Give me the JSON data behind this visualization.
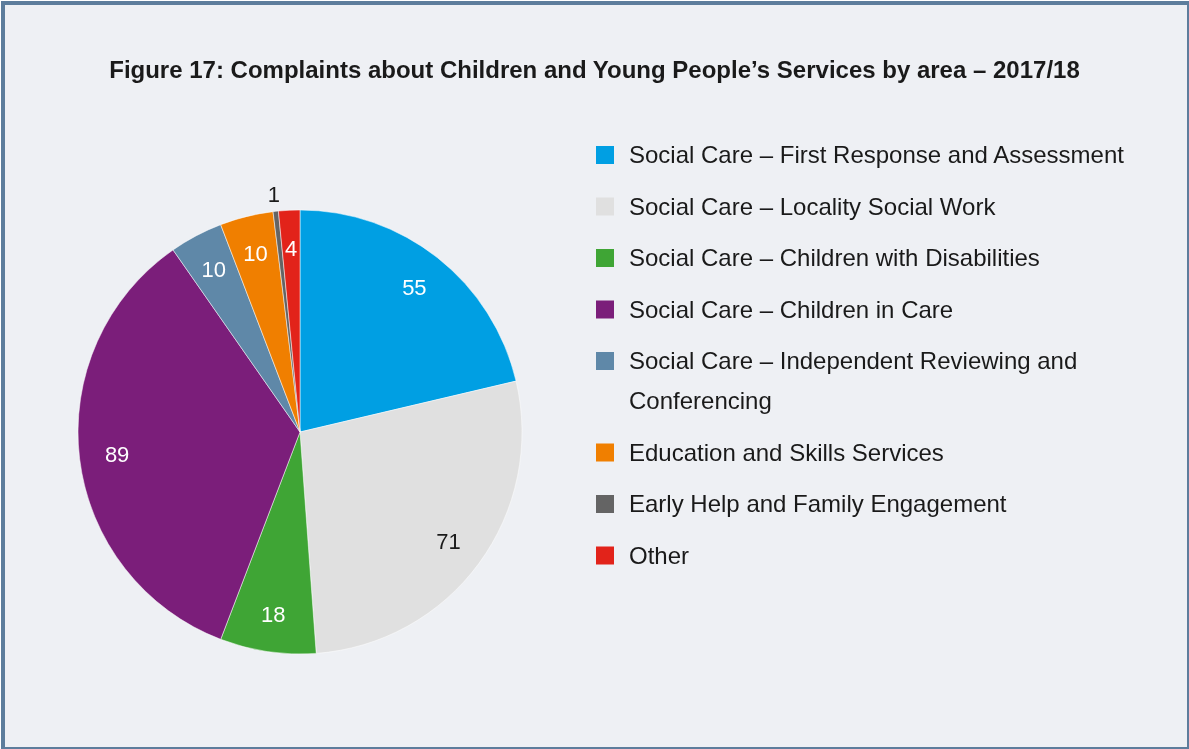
{
  "chart_data": {
    "type": "pie",
    "title": "Figure 17: Complaints about Children and Young People’s Services by area – 2017/18",
    "categories": [
      "Social Care – First Response and Assessment",
      "Social Care – Locality Social Work",
      "Social Care – Children with Disabilities",
      "Social Care – Children in Care",
      "Social Care – Independent Reviewing and Conferencing",
      "Education and Skills Services",
      "Early Help and Family Engagement",
      "Other"
    ],
    "values": [
      55,
      71,
      18,
      89,
      10,
      10,
      1,
      4
    ],
    "colors": [
      "#009fe3",
      "#e0e0e0",
      "#3fa535",
      "#7b1e7a",
      "#5f88a8",
      "#f07f00",
      "#646464",
      "#e2231a"
    ],
    "data_labels": true,
    "legend": "right"
  }
}
